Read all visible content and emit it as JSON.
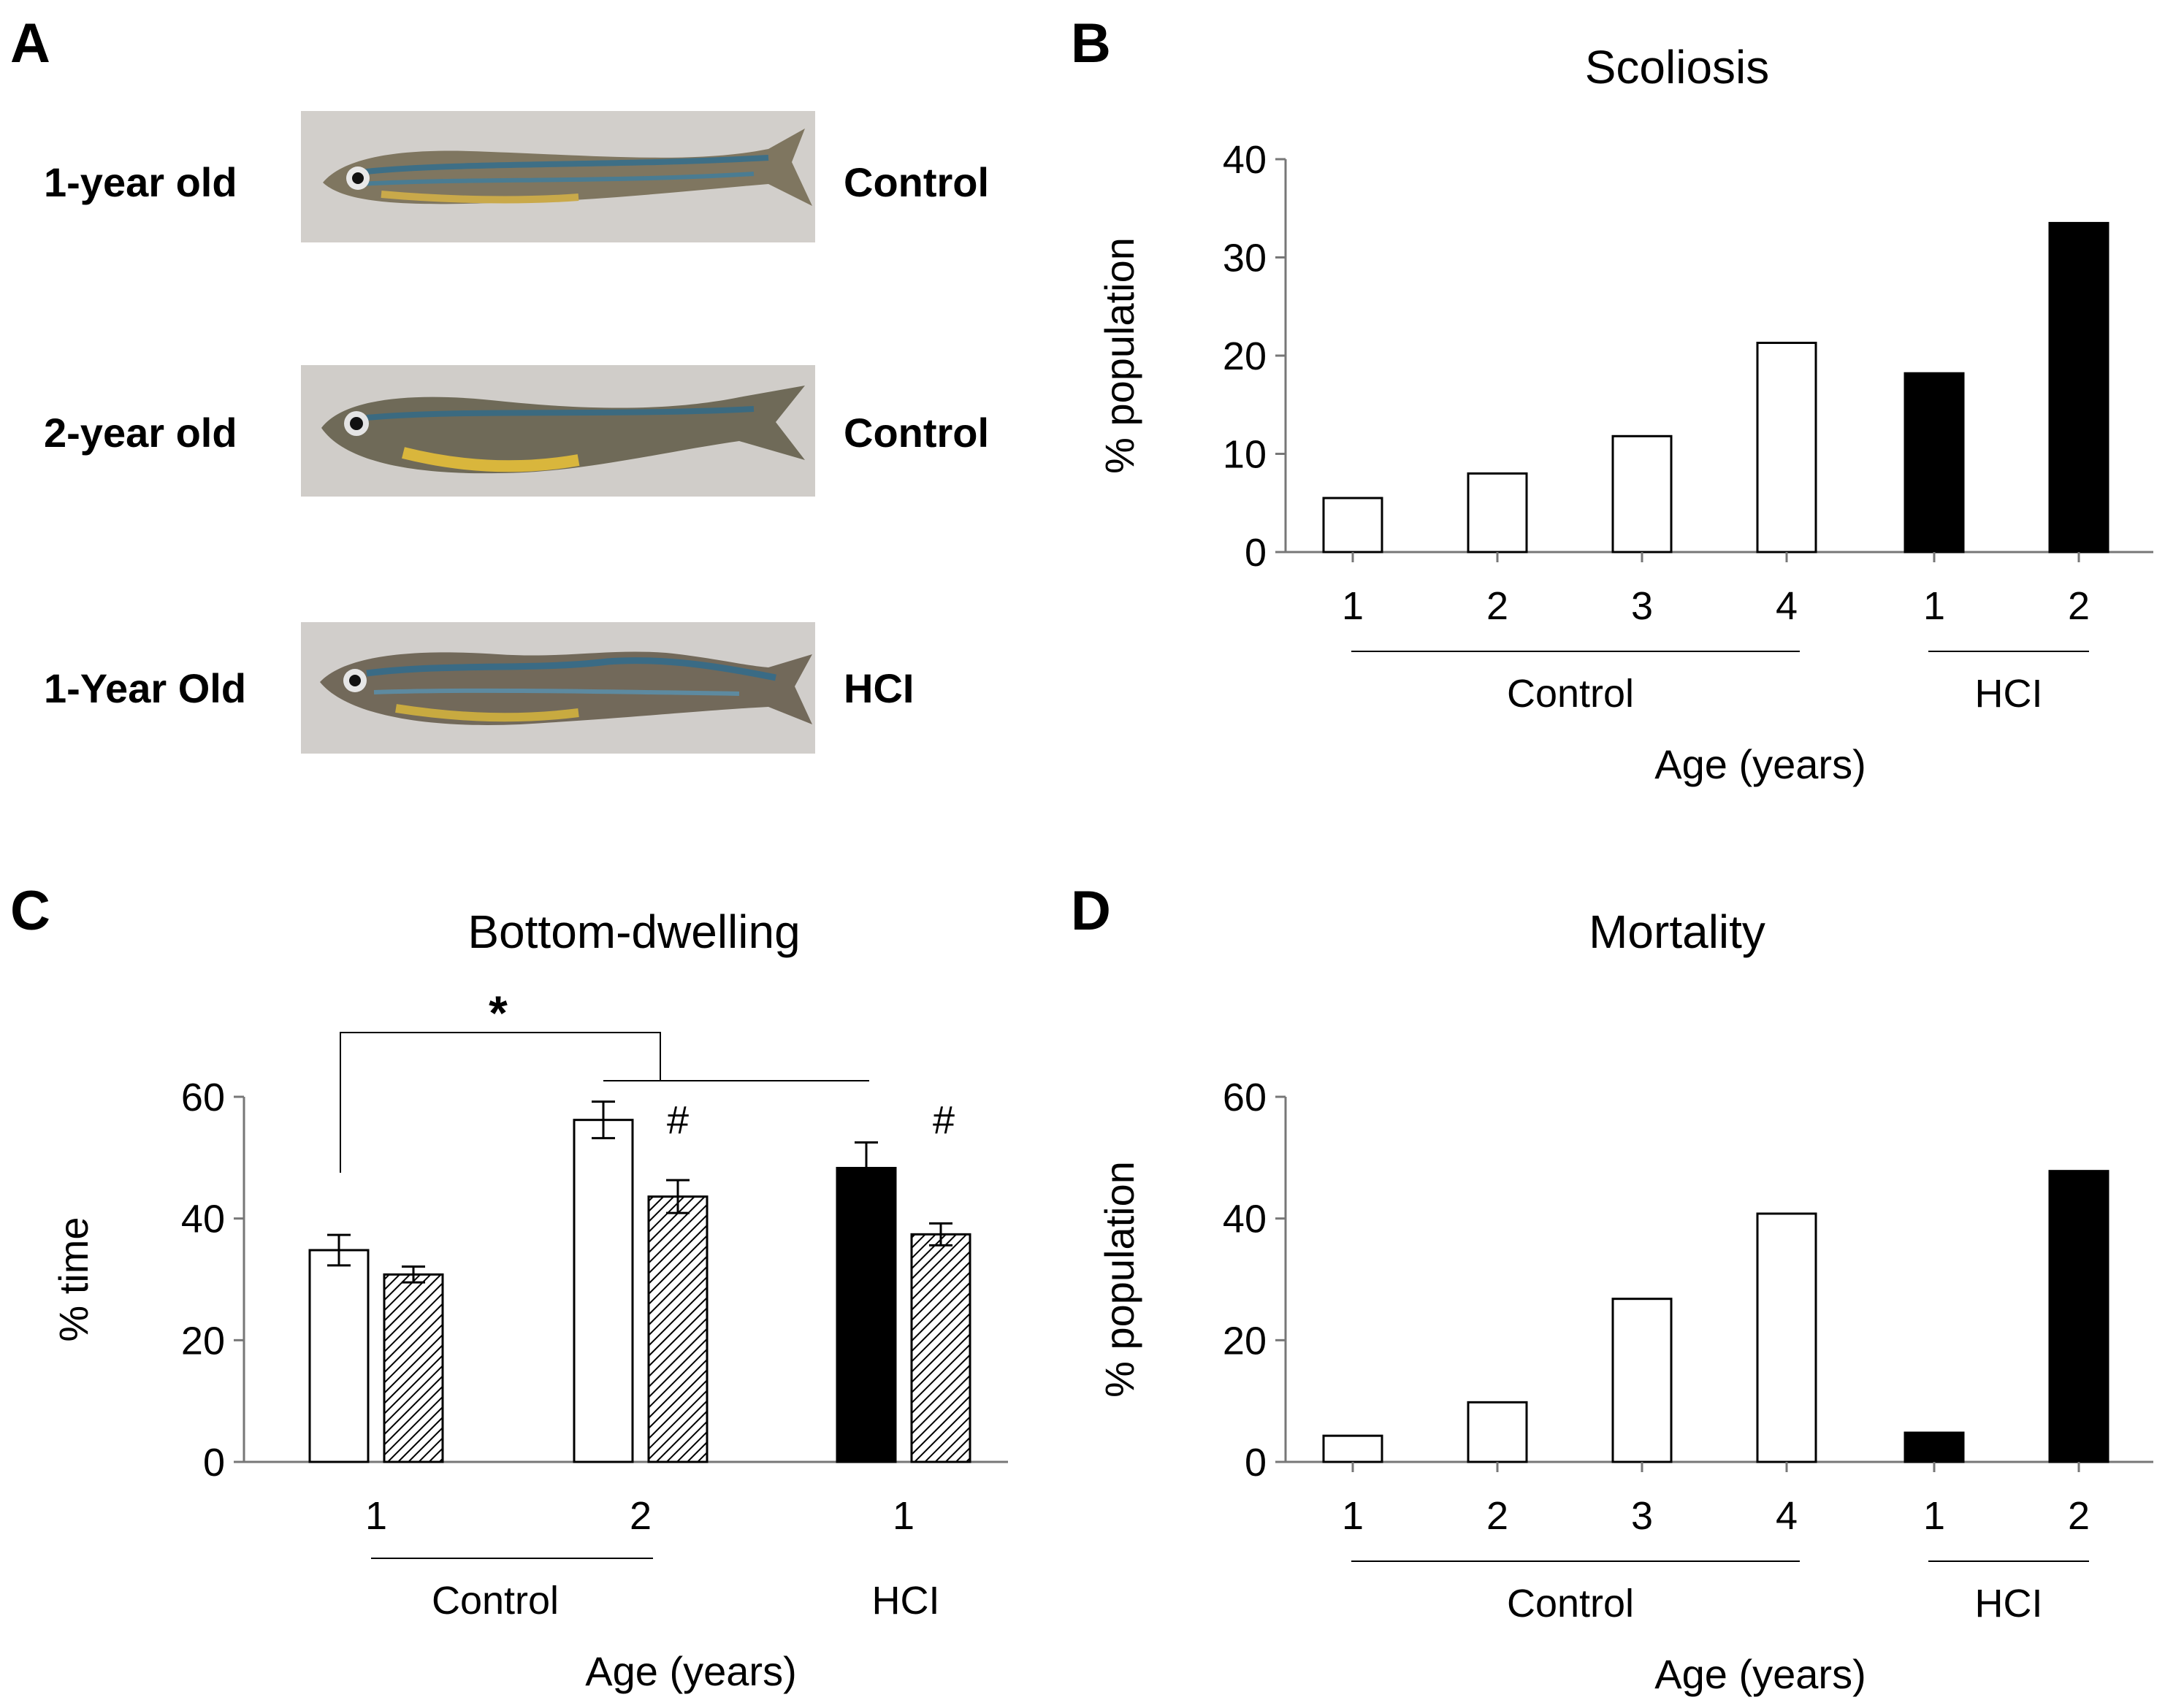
{
  "panels": {
    "a": {
      "letter": "A"
    },
    "b": {
      "letter": "B"
    },
    "c": {
      "letter": "C"
    },
    "d": {
      "letter": "D"
    }
  },
  "panel_a": {
    "rows": [
      {
        "age_label": "1-year old",
        "group_label": "Control"
      },
      {
        "age_label": "2-year old",
        "group_label": "Control"
      },
      {
        "age_label": "1-Year Old",
        "group_label": "HCI"
      }
    ]
  },
  "chart_data": [
    {
      "id": "B",
      "type": "bar",
      "title": "Scoliosis",
      "ylabel": "% population",
      "xlabel": "Age (years)",
      "ylim": [
        0,
        40
      ],
      "yticks": [
        0,
        10,
        20,
        30,
        40
      ],
      "categories": [
        "1",
        "2",
        "3",
        "4",
        "1",
        "2"
      ],
      "groups": [
        {
          "name": "Control",
          "categories": [
            "1",
            "2",
            "3",
            "4"
          ],
          "values": [
            5.5,
            8,
            11.8,
            21.3
          ],
          "fill": "white"
        },
        {
          "name": "HCI",
          "categories": [
            "1",
            "2"
          ],
          "values": [
            18.2,
            33.5
          ],
          "fill": "black"
        }
      ]
    },
    {
      "id": "C",
      "type": "bar",
      "title": "Bottom-dwelling",
      "ylabel": "% time",
      "xlabel": "Age (years)",
      "ylim": [
        0,
        60
      ],
      "yticks": [
        0,
        20,
        40,
        60
      ],
      "categories": [
        "1",
        "2",
        "1"
      ],
      "groups": [
        {
          "name": "Control",
          "categories": [
            "1",
            "2"
          ]
        },
        {
          "name": "HCI",
          "categories": [
            "1"
          ]
        }
      ],
      "series": [
        {
          "name": "primary",
          "fills": [
            "white",
            "white",
            "black"
          ],
          "values": [
            34.8,
            56.2,
            48.3
          ],
          "errors": [
            2.5,
            3.0,
            4.2
          ]
        },
        {
          "name": "hatched",
          "fills": [
            "hatch",
            "hatch",
            "hatch"
          ],
          "values": [
            30.8,
            43.6,
            37.4
          ],
          "errors": [
            1.3,
            2.7,
            1.8
          ]
        }
      ],
      "annotations": {
        "significance": "*",
        "hash": "#"
      }
    },
    {
      "id": "D",
      "type": "bar",
      "title": "Mortality",
      "ylabel": "% population",
      "xlabel": "Age (years)",
      "ylim": [
        0,
        60
      ],
      "yticks": [
        0,
        20,
        40,
        60
      ],
      "categories": [
        "1",
        "2",
        "3",
        "4",
        "1",
        "2"
      ],
      "groups": [
        {
          "name": "Control",
          "categories": [
            "1",
            "2",
            "3",
            "4"
          ],
          "values": [
            4.3,
            9.8,
            26.8,
            40.8
          ],
          "fill": "white"
        },
        {
          "name": "HCI",
          "categories": [
            "1",
            "2"
          ],
          "values": [
            4.8,
            47.8
          ],
          "fill": "black"
        }
      ]
    }
  ]
}
